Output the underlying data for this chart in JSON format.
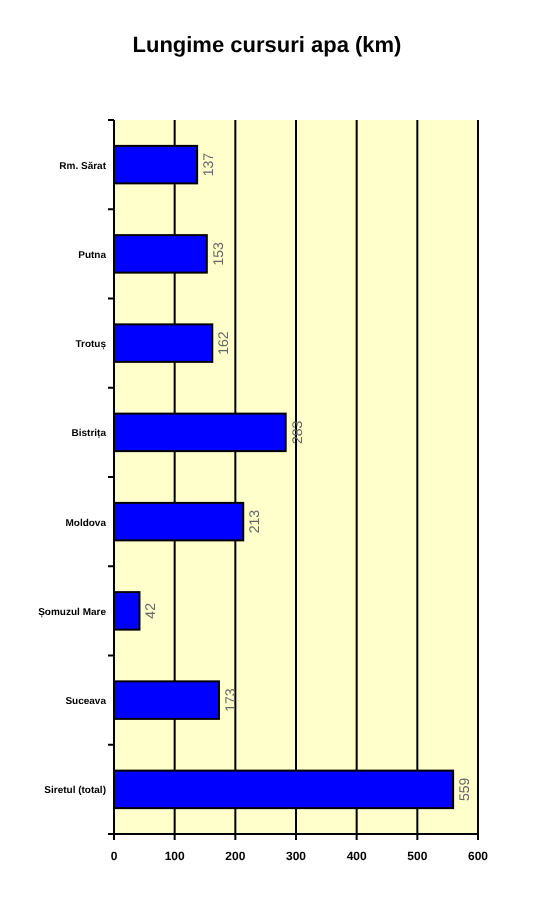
{
  "chart_data": {
    "type": "bar",
    "orientation": "horizontal",
    "title": "Lungime cursuri apa (km)",
    "categories": [
      "Rm. Sărat",
      "Putna",
      "Trotuș",
      "Bistrița",
      "Moldova",
      "Șomuzul Mare",
      "Suceava",
      "Siretul (total)"
    ],
    "values": [
      137,
      153,
      162,
      283,
      213,
      42,
      173,
      559
    ],
    "color": "#0000ff",
    "xlim": [
      0,
      600
    ],
    "xticks": [
      0,
      100,
      200,
      300,
      400,
      500,
      600
    ],
    "grid": "x",
    "data_labels": true
  }
}
